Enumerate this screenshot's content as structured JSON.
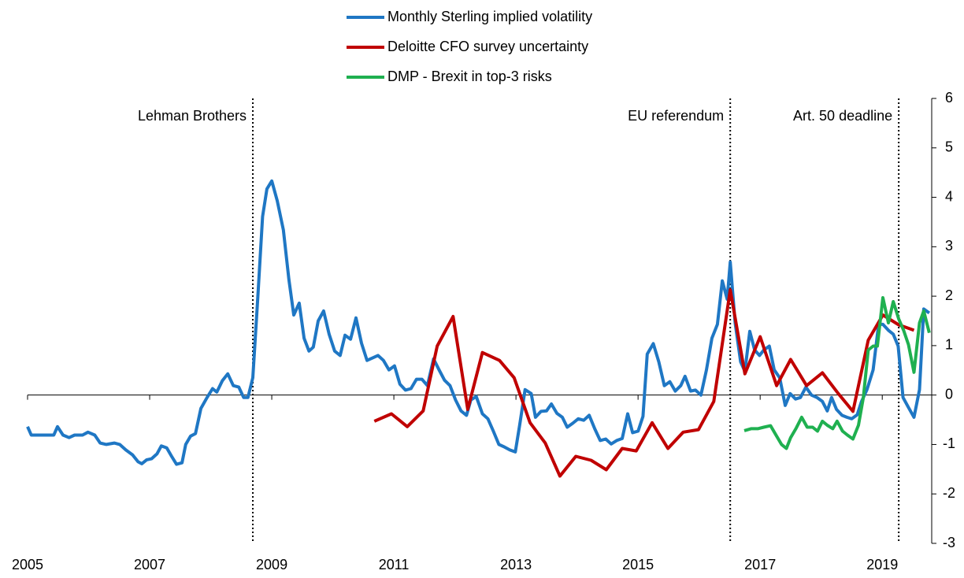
{
  "chart_data": {
    "type": "line",
    "legend": "top",
    "xlim": [
      2005,
      2019.81
    ],
    "xticks": [
      2005,
      2007,
      2009,
      2011,
      2013,
      2015,
      2017,
      2019
    ],
    "ylim": [
      -3,
      6
    ],
    "yticks": [
      -3,
      -2,
      -1,
      0,
      1,
      2,
      3,
      4,
      5,
      6
    ],
    "y_axis_side": "right",
    "annotations": [
      {
        "x": 2008.69,
        "label": "Lehman Brothers"
      },
      {
        "x": 2016.51,
        "label": "EU referendum"
      },
      {
        "x": 2019.27,
        "label": "Art. 50 deadline"
      }
    ],
    "series": [
      {
        "name": "Monthly Sterling implied volatility",
        "color": "#1f77c4",
        "x": [
          2005.0,
          2005.06,
          2005.26,
          2005.43,
          2005.49,
          2005.58,
          2005.68,
          2005.77,
          2005.9,
          2005.99,
          2006.1,
          2006.19,
          2006.29,
          2006.42,
          2006.51,
          2006.61,
          2006.72,
          2006.81,
          2006.87,
          2006.95,
          2007.03,
          2007.12,
          2007.19,
          2007.28,
          2007.36,
          2007.44,
          2007.53,
          2007.59,
          2007.67,
          2007.75,
          2007.84,
          2007.94,
          2008.03,
          2008.1,
          2008.19,
          2008.28,
          2008.37,
          2008.46,
          2008.54,
          2008.61,
          2008.69,
          2008.77,
          2008.85,
          2008.92,
          2009.0,
          2009.09,
          2009.19,
          2009.28,
          2009.36,
          2009.45,
          2009.53,
          2009.61,
          2009.68,
          2009.76,
          2009.85,
          2009.94,
          2010.03,
          2010.12,
          2010.2,
          2010.29,
          2010.38,
          2010.47,
          2010.56,
          2010.65,
          2010.74,
          2010.83,
          2010.92,
          2011.01,
          2011.1,
          2011.19,
          2011.28,
          2011.37,
          2011.46,
          2011.55,
          2011.65,
          2011.74,
          2011.83,
          2011.92,
          2012.01,
          2012.1,
          2012.19,
          2012.26,
          2012.35,
          2012.45,
          2012.54,
          2012.63,
          2012.72,
          2012.81,
          2012.9,
          2012.99,
          2013.06,
          2013.15,
          2013.25,
          2013.32,
          2013.41,
          2013.5,
          2013.58,
          2013.67,
          2013.76,
          2013.84,
          2013.93,
          2014.02,
          2014.11,
          2014.2,
          2014.29,
          2014.38,
          2014.47,
          2014.56,
          2014.65,
          2014.74,
          2014.83,
          2014.91,
          2015.0,
          2015.08,
          2015.15,
          2015.25,
          2015.34,
          2015.43,
          2015.52,
          2015.61,
          2015.7,
          2015.77,
          2015.86,
          2015.94,
          2016.03,
          2016.12,
          2016.21,
          2016.3,
          2016.38,
          2016.46,
          2016.51,
          2016.59,
          2016.68,
          2016.75,
          2016.83,
          2016.91,
          2016.99,
          2017.06,
          2017.15,
          2017.23,
          2017.32,
          2017.41,
          2017.49,
          2017.58,
          2017.66,
          2017.75,
          2017.84,
          2017.93,
          2018.02,
          2018.1,
          2018.17,
          2018.25,
          2018.34,
          2018.42,
          2018.5,
          2018.59,
          2018.66,
          2018.75,
          2018.85,
          2018.94,
          2019.01,
          2019.1,
          2019.18,
          2019.26,
          2019.34,
          2019.43,
          2019.52,
          2019.61,
          2019.68,
          2019.77
        ],
        "values": [
          -0.64,
          -0.81,
          -0.81,
          -0.81,
          -0.64,
          -0.81,
          -0.86,
          -0.81,
          -0.81,
          -0.75,
          -0.81,
          -0.97,
          -1.0,
          -0.97,
          -1.0,
          -1.11,
          -1.21,
          -1.35,
          -1.39,
          -1.31,
          -1.29,
          -1.19,
          -1.03,
          -1.07,
          -1.24,
          -1.4,
          -1.37,
          -1.0,
          -0.83,
          -0.78,
          -0.27,
          -0.05,
          0.13,
          0.06,
          0.29,
          0.43,
          0.19,
          0.16,
          -0.05,
          -0.05,
          0.35,
          1.94,
          3.61,
          4.17,
          4.33,
          3.93,
          3.34,
          2.34,
          1.62,
          1.86,
          1.15,
          0.89,
          0.97,
          1.5,
          1.7,
          1.23,
          0.89,
          0.8,
          1.21,
          1.13,
          1.56,
          1.05,
          0.7,
          0.75,
          0.8,
          0.7,
          0.51,
          0.59,
          0.22,
          0.1,
          0.13,
          0.32,
          0.32,
          0.19,
          0.73,
          0.51,
          0.3,
          0.19,
          -0.1,
          -0.32,
          -0.41,
          -0.1,
          -0.03,
          -0.38,
          -0.48,
          -0.73,
          -1.0,
          -1.05,
          -1.11,
          -1.15,
          -0.61,
          0.11,
          0.03,
          -0.45,
          -0.33,
          -0.32,
          -0.18,
          -0.37,
          -0.45,
          -0.65,
          -0.57,
          -0.48,
          -0.51,
          -0.41,
          -0.68,
          -0.92,
          -0.89,
          -0.99,
          -0.92,
          -0.88,
          -0.38,
          -0.76,
          -0.73,
          -0.43,
          0.83,
          1.04,
          0.67,
          0.19,
          0.27,
          0.08,
          0.19,
          0.38,
          0.08,
          0.1,
          0,
          0.51,
          1.15,
          1.43,
          2.31,
          1.94,
          2.69,
          1.46,
          0.67,
          0.48,
          1.29,
          0.91,
          0.8,
          0.91,
          0.99,
          0.51,
          0.35,
          -0.21,
          0.03,
          -0.08,
          -0.05,
          0.16,
          0,
          -0.05,
          -0.13,
          -0.32,
          -0.05,
          -0.29,
          -0.41,
          -0.45,
          -0.48,
          -0.4,
          -0.13,
          0.11,
          0.51,
          1.43,
          1.43,
          1.31,
          1.23,
          0.99,
          -0.05,
          -0.25,
          -0.45,
          0.11,
          1.74,
          1.66
        ]
      },
      {
        "name": "Deloitte CFO survey uncertainty",
        "color": "#c00000",
        "x": [
          2010.68,
          2010.96,
          2011.22,
          2011.48,
          2011.71,
          2011.97,
          2012.21,
          2012.45,
          2012.73,
          2012.97,
          2013.23,
          2013.48,
          2013.72,
          2013.98,
          2014.23,
          2014.48,
          2014.74,
          2014.97,
          2015.23,
          2015.49,
          2015.74,
          2015.99,
          2016.24,
          2016.51,
          2016.75,
          2017.0,
          2017.27,
          2017.5,
          2017.76,
          2018.02,
          2018.28,
          2018.52,
          2018.77,
          2019.01,
          2019.27,
          2019.52
        ],
        "values": [
          -0.53,
          -0.38,
          -0.64,
          -0.32,
          0.99,
          1.59,
          -0.29,
          0.86,
          0.7,
          0.35,
          -0.56,
          -0.97,
          -1.64,
          -1.24,
          -1.32,
          -1.51,
          -1.08,
          -1.13,
          -0.56,
          -1.08,
          -0.75,
          -0.7,
          -0.13,
          2.13,
          0.43,
          1.18,
          0.19,
          0.72,
          0.19,
          0.45,
          0.03,
          -0.33,
          1.11,
          1.62,
          1.42,
          1.31
        ]
      },
      {
        "name": "DMP - Brexit in top-3 risks",
        "color": "#1fb050",
        "x": [
          2016.74,
          2016.85,
          2016.96,
          2017.06,
          2017.17,
          2017.26,
          2017.35,
          2017.43,
          2017.5,
          2017.59,
          2017.68,
          2017.77,
          2017.86,
          2017.94,
          2018.02,
          2018.1,
          2018.19,
          2018.26,
          2018.35,
          2018.43,
          2018.52,
          2018.61,
          2018.69,
          2018.77,
          2018.85,
          2018.92,
          2019.01,
          2019.1,
          2019.18,
          2019.27,
          2019.35,
          2019.43,
          2019.52,
          2019.61,
          2019.68,
          2019.77
        ],
        "values": [
          -0.72,
          -0.68,
          -0.68,
          -0.65,
          -0.62,
          -0.81,
          -1.0,
          -1.08,
          -0.86,
          -0.67,
          -0.45,
          -0.65,
          -0.65,
          -0.73,
          -0.53,
          -0.61,
          -0.68,
          -0.53,
          -0.73,
          -0.81,
          -0.89,
          -0.61,
          -0.05,
          0.91,
          0.99,
          0.99,
          1.97,
          1.46,
          1.89,
          1.54,
          1.31,
          1.02,
          0.46,
          1.46,
          1.7,
          1.26
        ]
      }
    ]
  }
}
